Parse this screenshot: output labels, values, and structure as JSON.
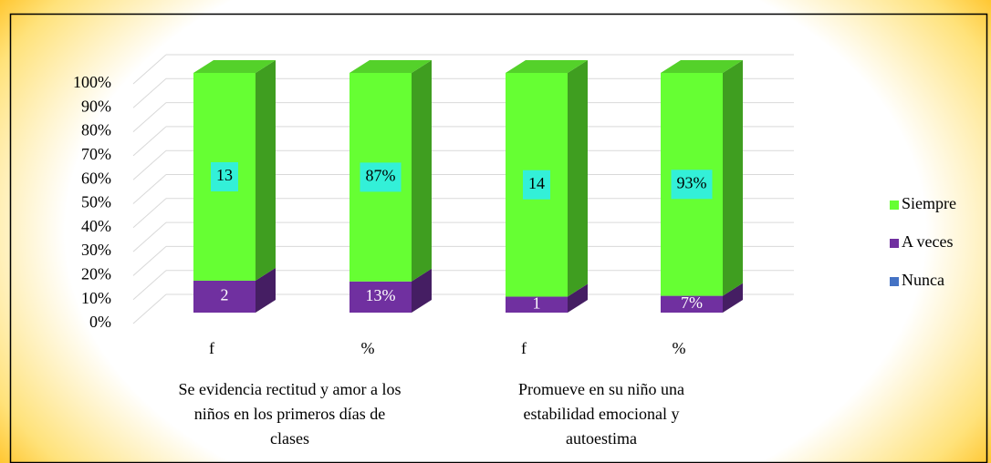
{
  "chart_data": {
    "type": "bar",
    "stacking": "percent",
    "categories": [
      "f",
      "%",
      "f",
      "%"
    ],
    "group_labels": [
      [
        "Se evidencia rectitud y amor a los",
        "niños en los primeros días de",
        "clases"
      ],
      [
        "Promueve en su niño una",
        "estabilidad emocional y",
        "autoestima"
      ]
    ],
    "series": [
      {
        "name": "Nunca",
        "color": "#4472c4",
        "values": [
          0,
          0,
          0,
          0
        ]
      },
      {
        "name": "A veces",
        "color": "#7030a0",
        "values": [
          2,
          13,
          1,
          7
        ],
        "value_labels": [
          "2",
          "13%",
          "1",
          "7%"
        ]
      },
      {
        "name": "Siempre",
        "color": "#66ff33",
        "values": [
          13,
          87,
          14,
          93
        ],
        "value_labels": [
          "13",
          "87%",
          "14",
          "93%"
        ]
      }
    ],
    "ylim": [
      0,
      100
    ],
    "yticks": [
      {
        "value": 0,
        "label": "0%"
      },
      {
        "value": 10,
        "label": "10%"
      },
      {
        "value": 20,
        "label": "20%"
      },
      {
        "value": 30,
        "label": "30%"
      },
      {
        "value": 40,
        "label": "40%"
      },
      {
        "value": 50,
        "label": "50%"
      },
      {
        "value": 60,
        "label": "60%"
      },
      {
        "value": 70,
        "label": "70%"
      },
      {
        "value": 80,
        "label": "80%"
      },
      {
        "value": 90,
        "label": "90%"
      },
      {
        "value": 100,
        "label": "100%"
      }
    ],
    "grid": true,
    "legend": "right"
  }
}
